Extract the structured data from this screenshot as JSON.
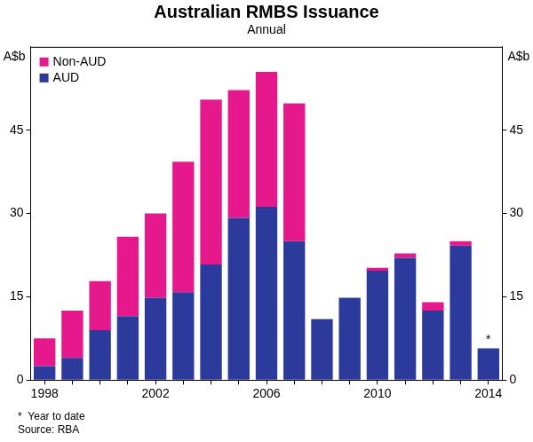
{
  "chart_data": {
    "type": "bar",
    "title": "Australian RMBS Issuance",
    "subtitle": "Annual",
    "y_label": "A$b",
    "y2_label": "A$b",
    "categories": [
      "1998",
      null,
      null,
      null,
      "2002",
      null,
      null,
      null,
      "2006",
      null,
      null,
      null,
      "2010",
      null,
      null,
      null,
      "2014"
    ],
    "series": [
      {
        "name": "AUD",
        "color": "#2b3a9b",
        "values": [
          2.5,
          4,
          9,
          11.5,
          14.8,
          15.8,
          20.8,
          29.2,
          31.2,
          25,
          11,
          14.8,
          19.7,
          22,
          12.5,
          24.2,
          5.7
        ]
      },
      {
        "name": "Non-AUD",
        "color": "#e5198c",
        "values": [
          5,
          8.5,
          8.8,
          14.3,
          15.2,
          23.5,
          29.7,
          23,
          24.3,
          24.8,
          0,
          0,
          0.5,
          0.8,
          1.5,
          0.8,
          0
        ]
      }
    ],
    "stacked": true,
    "ylim": [
      0,
      60
    ],
    "yticks": [
      0,
      15,
      30,
      45
    ],
    "y2lim": [
      0,
      60
    ],
    "y2ticks": [
      0,
      15,
      30,
      45
    ],
    "grid": false,
    "legend": "upper left",
    "annotations": [
      {
        "text": "*",
        "category": "2014"
      }
    ],
    "notes": [
      "*  Year to date",
      "Source: RBA"
    ]
  }
}
